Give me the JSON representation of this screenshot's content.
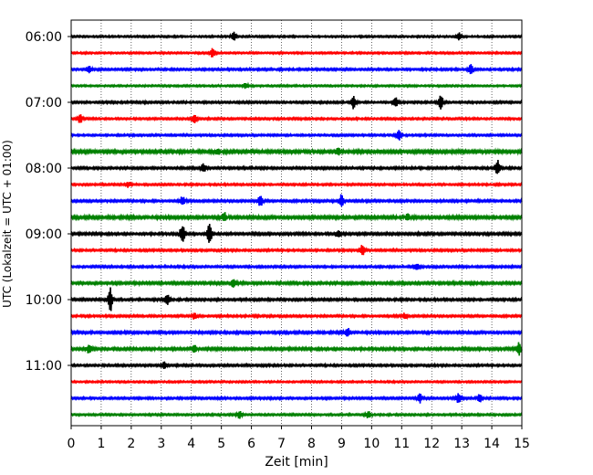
{
  "chart_data": {
    "type": "line",
    "title": "",
    "xlabel": "Zeit  [min]",
    "ylabel": "UTC (Lokalzeit = UTC + 01:00)",
    "xlim": [
      0,
      15
    ],
    "x_ticks": [
      "0",
      "1",
      "2",
      "3",
      "4",
      "5",
      "6",
      "7",
      "8",
      "9",
      "10",
      "11",
      "12",
      "13",
      "14",
      "15"
    ],
    "y_ticks": [
      "06:00",
      "07:00",
      "08:00",
      "09:00",
      "10:00",
      "11:00"
    ],
    "grid": "vertical dotted lines at each minute",
    "color_cycle": [
      "#000000",
      "#ff0000",
      "#0000ff",
      "#008000"
    ],
    "traces": [
      {
        "start": "06:00",
        "color": "#000000",
        "noise": 1.0,
        "events": [
          {
            "t": 5.4,
            "amp": 5
          },
          {
            "t": 12.9,
            "amp": 4
          }
        ]
      },
      {
        "start": "06:15",
        "color": "#ff0000",
        "noise": 1.0,
        "events": [
          {
            "t": 4.7,
            "amp": 5
          }
        ]
      },
      {
        "start": "06:30",
        "color": "#0000ff",
        "noise": 1.2,
        "events": [
          {
            "t": 0.6,
            "amp": 4
          },
          {
            "t": 13.3,
            "amp": 5
          }
        ]
      },
      {
        "start": "06:45",
        "color": "#008000",
        "noise": 1.0,
        "events": [
          {
            "t": 5.8,
            "amp": 3
          }
        ]
      },
      {
        "start": "07:00",
        "color": "#000000",
        "noise": 1.2,
        "events": [
          {
            "t": 9.4,
            "amp": 7
          },
          {
            "t": 10.8,
            "amp": 6
          },
          {
            "t": 12.3,
            "amp": 9
          }
        ]
      },
      {
        "start": "07:15",
        "color": "#ff0000",
        "noise": 1.1,
        "events": [
          {
            "t": 0.3,
            "amp": 5
          },
          {
            "t": 4.1,
            "amp": 5
          }
        ]
      },
      {
        "start": "07:30",
        "color": "#0000ff",
        "noise": 1.1,
        "events": [
          {
            "t": 10.9,
            "amp": 6
          }
        ]
      },
      {
        "start": "07:45",
        "color": "#008000",
        "noise": 1.8,
        "events": [
          {
            "t": 8.9,
            "amp": 4
          },
          {
            "t": 4.9,
            "amp": 3
          }
        ]
      },
      {
        "start": "08:00",
        "color": "#000000",
        "noise": 1.3,
        "events": [
          {
            "t": 4.4,
            "amp": 5
          },
          {
            "t": 14.2,
            "amp": 8
          }
        ]
      },
      {
        "start": "08:15",
        "color": "#ff0000",
        "noise": 1.1,
        "events": [
          {
            "t": 1.9,
            "amp": 3
          }
        ]
      },
      {
        "start": "08:30",
        "color": "#0000ff",
        "noise": 1.3,
        "events": [
          {
            "t": 3.7,
            "amp": 5
          },
          {
            "t": 6.3,
            "amp": 6
          },
          {
            "t": 9.0,
            "amp": 7
          }
        ]
      },
      {
        "start": "08:45",
        "color": "#008000",
        "noise": 1.7,
        "events": [
          {
            "t": 5.1,
            "amp": 5
          },
          {
            "t": 11.2,
            "amp": 4
          }
        ]
      },
      {
        "start": "09:00",
        "color": "#000000",
        "noise": 1.4,
        "events": [
          {
            "t": 3.7,
            "amp": 10
          },
          {
            "t": 4.6,
            "amp": 13
          },
          {
            "t": 8.9,
            "amp": 4
          }
        ]
      },
      {
        "start": "09:15",
        "color": "#ff0000",
        "noise": 1.2,
        "events": [
          {
            "t": 9.7,
            "amp": 6
          }
        ]
      },
      {
        "start": "09:30",
        "color": "#0000ff",
        "noise": 1.2,
        "events": [
          {
            "t": 11.5,
            "amp": 4
          }
        ]
      },
      {
        "start": "09:45",
        "color": "#008000",
        "noise": 1.5,
        "events": [
          {
            "t": 5.4,
            "amp": 5
          }
        ]
      },
      {
        "start": "10:00",
        "color": "#000000",
        "noise": 1.3,
        "events": [
          {
            "t": 1.3,
            "amp": 13
          },
          {
            "t": 3.2,
            "amp": 6
          }
        ]
      },
      {
        "start": "10:15",
        "color": "#ff0000",
        "noise": 1.2,
        "events": [
          {
            "t": 4.1,
            "amp": 4
          },
          {
            "t": 11.1,
            "amp": 3
          }
        ]
      },
      {
        "start": "10:30",
        "color": "#0000ff",
        "noise": 1.4,
        "events": [
          {
            "t": 9.2,
            "amp": 5
          }
        ]
      },
      {
        "start": "10:45",
        "color": "#008000",
        "noise": 1.5,
        "events": [
          {
            "t": 0.6,
            "amp": 5
          },
          {
            "t": 4.1,
            "amp": 5
          },
          {
            "t": 14.9,
            "amp": 7
          }
        ]
      },
      {
        "start": "11:00",
        "color": "#000000",
        "noise": 1.2,
        "events": [
          {
            "t": 3.1,
            "amp": 4
          }
        ]
      },
      {
        "start": "11:15",
        "color": "#ff0000",
        "noise": 1.0,
        "events": []
      },
      {
        "start": "11:30",
        "color": "#0000ff",
        "noise": 1.2,
        "events": [
          {
            "t": 11.6,
            "amp": 5
          },
          {
            "t": 12.9,
            "amp": 6
          },
          {
            "t": 13.6,
            "amp": 5
          }
        ]
      },
      {
        "start": "11:45",
        "color": "#008000",
        "noise": 1.1,
        "events": [
          {
            "t": 5.6,
            "amp": 4
          },
          {
            "t": 9.9,
            "amp": 4
          }
        ]
      }
    ]
  }
}
